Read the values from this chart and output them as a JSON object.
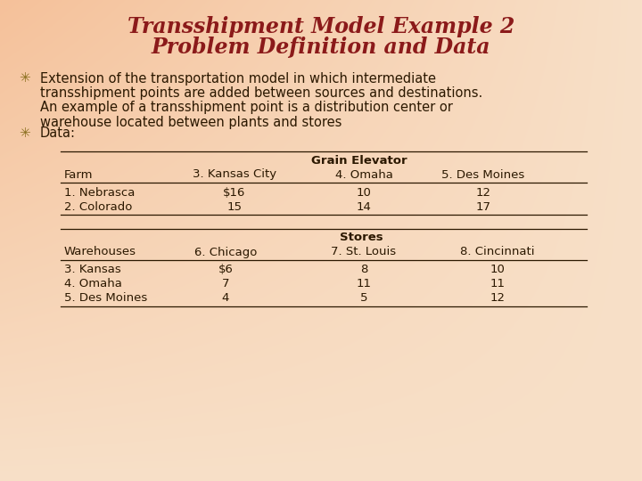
{
  "title_line1": "Transshipment Model Example 2",
  "title_line2": "Problem Definition and Data",
  "title_color": "#8B1A1A",
  "bg_color_topleft": "#F5C19A",
  "bg_color_bottomright": "#F8DFC0",
  "bullet_color": "#8B7020",
  "body_text_color": "#2B1800",
  "bullet1_lines": [
    "Extension of the transportation model in which intermediate",
    "transshipment points are added between sources and destinations.",
    "An example of a transshipment point is a distribution center or",
    "warehouse located between plants and stores"
  ],
  "bullet2": "Data:",
  "table1_header_group": "Grain Elevator",
  "table1_col_headers": [
    "Farm",
    "3. Kansas City",
    "4. Omaha",
    "5. Des Moines"
  ],
  "table1_rows": [
    [
      "1. Nebrasca",
      "$16",
      "10",
      "12"
    ],
    [
      "2. Colorado",
      "15",
      "14",
      "17"
    ]
  ],
  "table2_header_group": "Stores",
  "table2_col_headers": [
    "Warehouses",
    "6. Chicago",
    "7. St. Louis",
    "8. Cincinnati"
  ],
  "table2_rows": [
    [
      "3. Kansas",
      "$6",
      "8",
      "10"
    ],
    [
      "4. Omaha",
      "7",
      "11",
      "11"
    ],
    [
      "5. Des Moines",
      "4",
      "5",
      "12"
    ]
  ],
  "table_text_color": "#2B1800",
  "font_size_title": 17,
  "font_size_body": 10.5,
  "font_size_table": 9.5,
  "fig_width": 7.2,
  "fig_height": 5.4,
  "dpi": 100
}
